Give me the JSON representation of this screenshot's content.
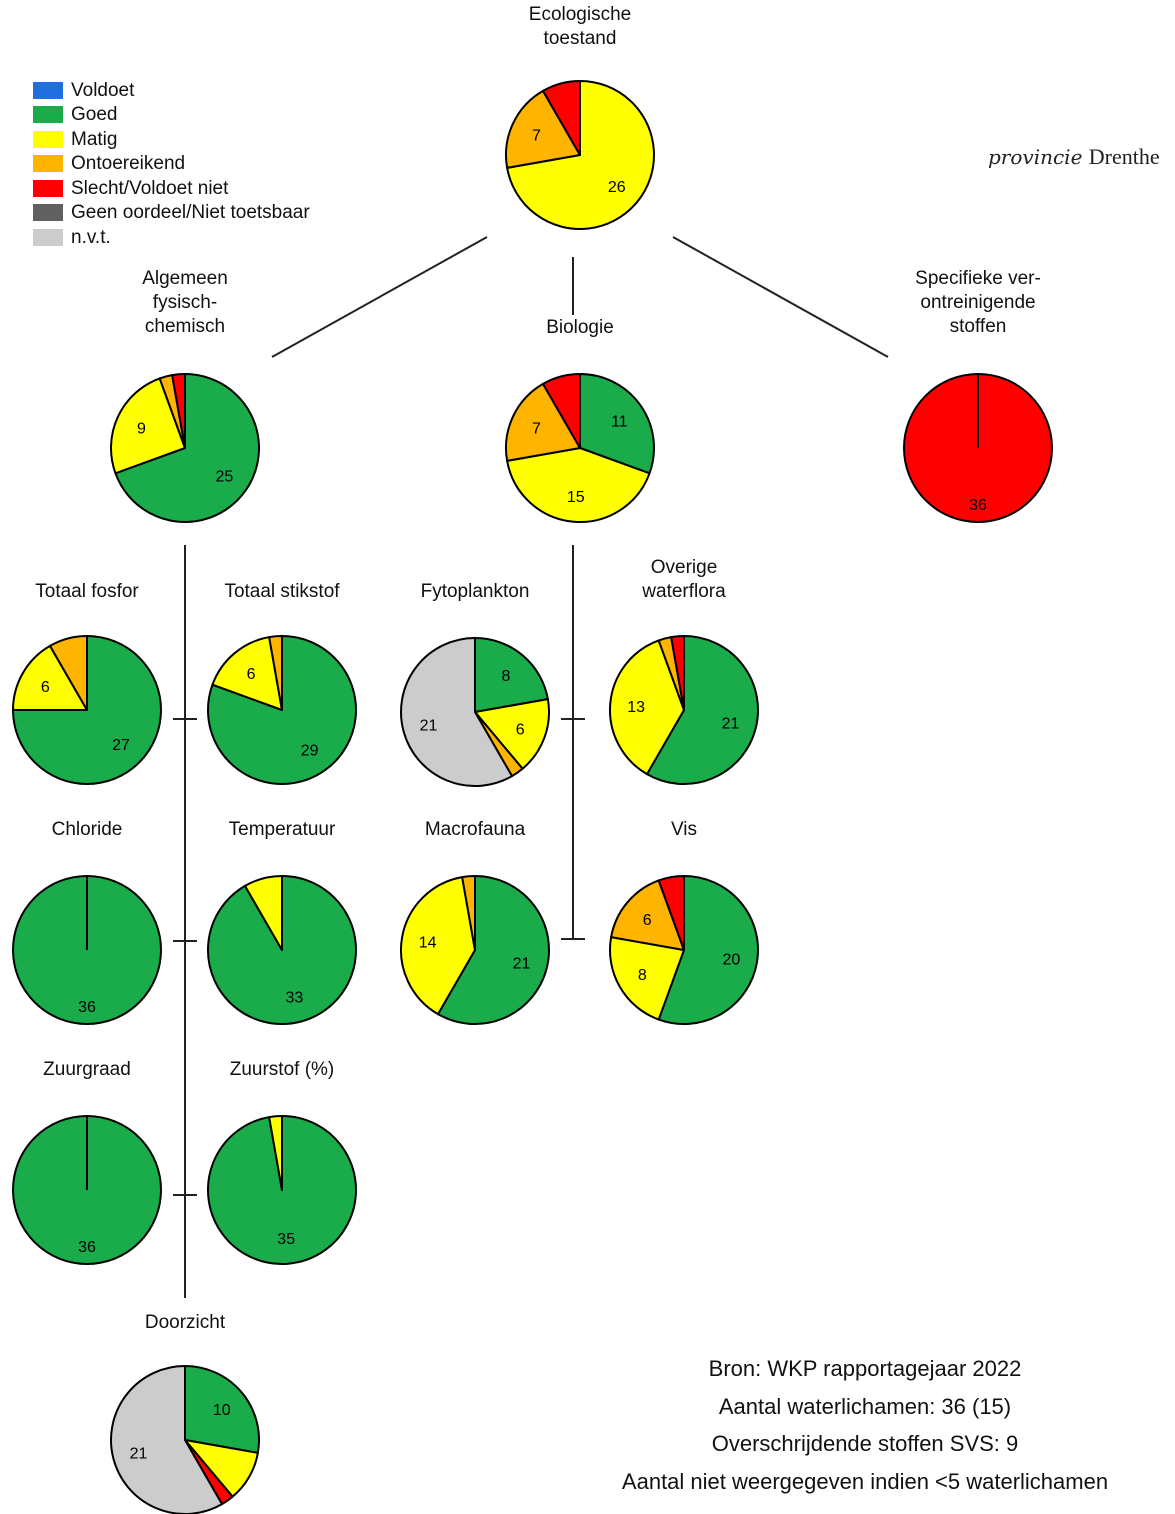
{
  "legend": [
    {
      "label": "Voldoet",
      "color": "#1f6fe0"
    },
    {
      "label": "Goed",
      "color": "#1aab4b"
    },
    {
      "label": "Matig",
      "color": "#ffff00"
    },
    {
      "label": "Ontoereikend",
      "color": "#ffb400"
    },
    {
      "label": "Slecht/Voldoet niet",
      "color": "#ff0000"
    },
    {
      "label": "Geen oordeel/Niet toetsbaar",
      "color": "#606060"
    },
    {
      "label": "n.v.t.",
      "color": "#cccccc"
    }
  ],
  "logo": {
    "text_italic": "provincie",
    "text_plain": "Drenthe"
  },
  "info": {
    "line1": "Bron: WKP rapportagejaar 2022",
    "line2": "Aantal waterlichamen: 36 (15)",
    "line3": "Overschrijdende stoffen SVS: 9",
    "line4": "Aantal niet weergegeven indien <5 waterlichamen"
  },
  "chart_data": [
    {
      "type": "pie",
      "title": "Ecologische toestand",
      "slices": [
        {
          "category": "Matig",
          "value": 26,
          "label": "26"
        },
        {
          "category": "Ontoereikend",
          "value": 7,
          "label": "7"
        },
        {
          "category": "Slecht/Voldoet niet",
          "value": 3,
          "label": ""
        }
      ]
    },
    {
      "type": "pie",
      "title": "Algemeen fysisch-chemisch",
      "slices": [
        {
          "category": "Goed",
          "value": 25,
          "label": "25"
        },
        {
          "category": "Matig",
          "value": 9,
          "label": "9"
        },
        {
          "category": "Ontoereikend",
          "value": 1,
          "label": ""
        },
        {
          "category": "Slecht/Voldoet niet",
          "value": 1,
          "label": ""
        }
      ]
    },
    {
      "type": "pie",
      "title": "Biologie",
      "slices": [
        {
          "category": "Goed",
          "value": 11,
          "label": "11"
        },
        {
          "category": "Matig",
          "value": 15,
          "label": "15"
        },
        {
          "category": "Ontoereikend",
          "value": 7,
          "label": "7"
        },
        {
          "category": "Slecht/Voldoet niet",
          "value": 3,
          "label": ""
        }
      ]
    },
    {
      "type": "pie",
      "title": "Specifieke ver-ontreinigende stoffen",
      "slices": [
        {
          "category": "Slecht/Voldoet niet",
          "value": 36,
          "label": "36"
        }
      ]
    },
    {
      "type": "pie",
      "title": "Totaal fosfor",
      "slices": [
        {
          "category": "Goed",
          "value": 27,
          "label": "27"
        },
        {
          "category": "Matig",
          "value": 6,
          "label": "6"
        },
        {
          "category": "Ontoereikend",
          "value": 3,
          "label": ""
        }
      ]
    },
    {
      "type": "pie",
      "title": "Totaal stikstof",
      "slices": [
        {
          "category": "Goed",
          "value": 29,
          "label": "29"
        },
        {
          "category": "Matig",
          "value": 6,
          "label": "6"
        },
        {
          "category": "Ontoereikend",
          "value": 1,
          "label": ""
        }
      ]
    },
    {
      "type": "pie",
      "title": "Fytoplankton",
      "slices": [
        {
          "category": "Goed",
          "value": 8,
          "label": "8"
        },
        {
          "category": "Matig",
          "value": 6,
          "label": "6"
        },
        {
          "category": "Ontoereikend",
          "value": 1,
          "label": ""
        },
        {
          "category": "n.v.t.",
          "value": 21,
          "label": "21"
        }
      ]
    },
    {
      "type": "pie",
      "title": "Overige waterflora",
      "slices": [
        {
          "category": "Goed",
          "value": 21,
          "label": "21"
        },
        {
          "category": "Matig",
          "value": 13,
          "label": "13"
        },
        {
          "category": "Ontoereikend",
          "value": 1,
          "label": ""
        },
        {
          "category": "Slecht/Voldoet niet",
          "value": 1,
          "label": ""
        }
      ]
    },
    {
      "type": "pie",
      "title": "Chloride",
      "slices": [
        {
          "category": "Goed",
          "value": 36,
          "label": "36"
        }
      ]
    },
    {
      "type": "pie",
      "title": "Temperatuur",
      "slices": [
        {
          "category": "Goed",
          "value": 33,
          "label": "33"
        },
        {
          "category": "Matig",
          "value": 3,
          "label": ""
        }
      ]
    },
    {
      "type": "pie",
      "title": "Macrofauna",
      "slices": [
        {
          "category": "Goed",
          "value": 21,
          "label": "21"
        },
        {
          "category": "Matig",
          "value": 14,
          "label": "14"
        },
        {
          "category": "Ontoereikend",
          "value": 1,
          "label": ""
        }
      ]
    },
    {
      "type": "pie",
      "title": "Vis",
      "slices": [
        {
          "category": "Goed",
          "value": 20,
          "label": "20"
        },
        {
          "category": "Matig",
          "value": 8,
          "label": "8"
        },
        {
          "category": "Ontoereikend",
          "value": 6,
          "label": "6"
        },
        {
          "category": "Slecht/Voldoet niet",
          "value": 2,
          "label": ""
        }
      ]
    },
    {
      "type": "pie",
      "title": "Zuurgraad",
      "slices": [
        {
          "category": "Goed",
          "value": 36,
          "label": "36"
        }
      ]
    },
    {
      "type": "pie",
      "title": "Zuurstof (%)",
      "slices": [
        {
          "category": "Goed",
          "value": 35,
          "label": "35"
        },
        {
          "category": "Matig",
          "value": 1,
          "label": ""
        }
      ]
    },
    {
      "type": "pie",
      "title": "Doorzicht",
      "slices": [
        {
          "category": "Goed",
          "value": 10,
          "label": "10"
        },
        {
          "category": "Matig",
          "value": 4,
          "label": ""
        },
        {
          "category": "Slecht/Voldoet niet",
          "value": 1,
          "label": ""
        },
        {
          "category": "n.v.t.",
          "value": 21,
          "label": "21"
        }
      ]
    }
  ]
}
